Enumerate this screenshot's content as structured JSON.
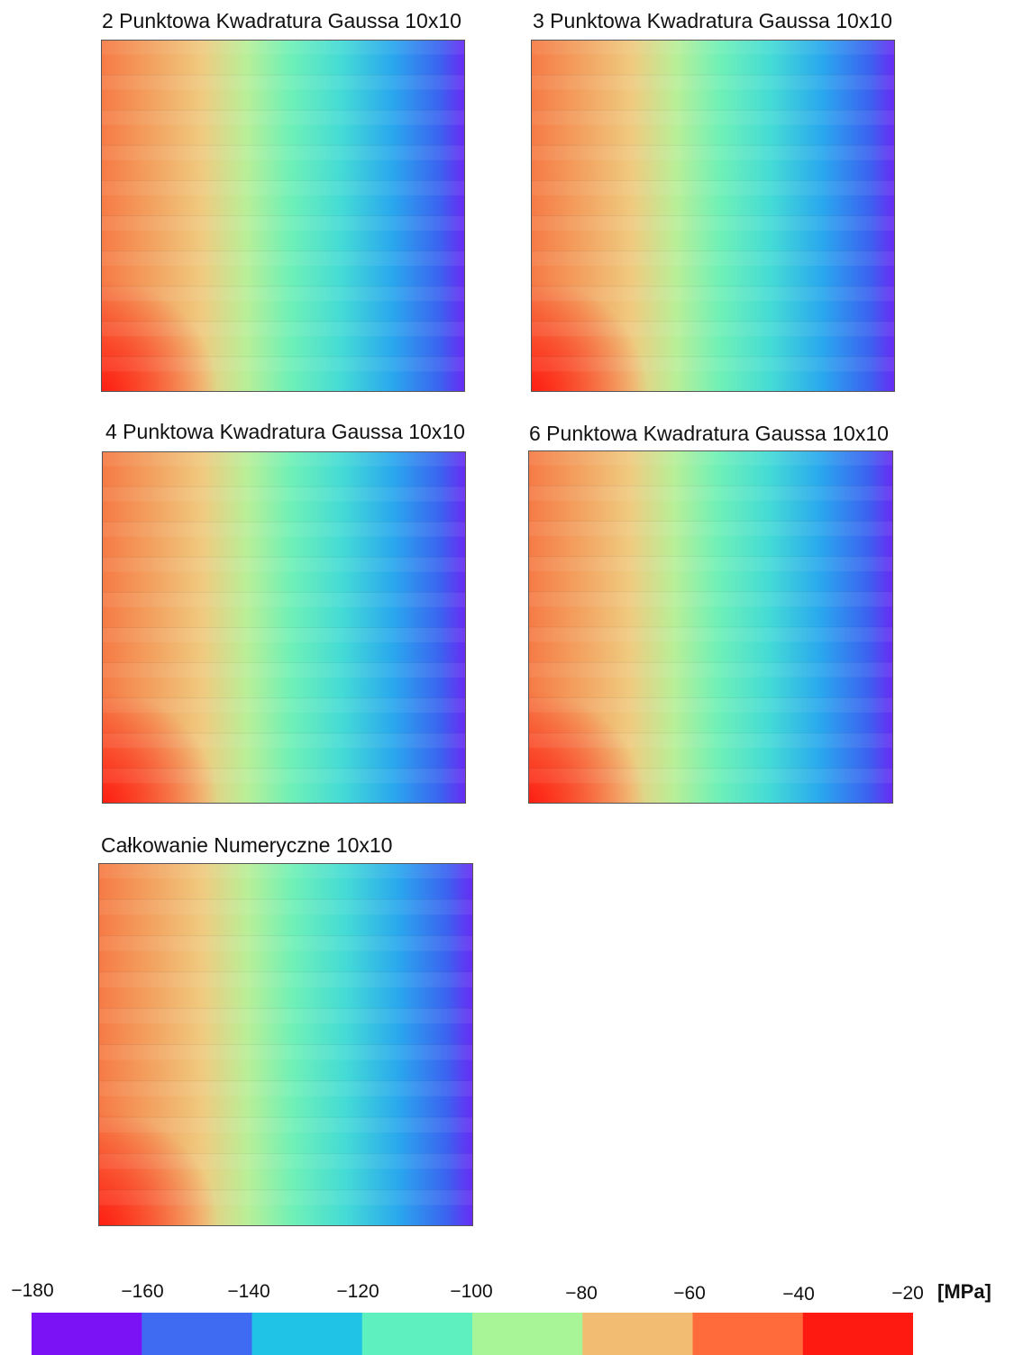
{
  "chart_data": {
    "type": "heatmap",
    "colorscale": {
      "min": -180,
      "max": -20,
      "unit": "[MPa]",
      "ticks": [
        -180,
        -160,
        -140,
        -120,
        -100,
        -80,
        -60,
        -40,
        -20
      ],
      "tick_labels": [
        "−180",
        "−160",
        "−140",
        "−120",
        "−100",
        "−80",
        "−60",
        "−40",
        "−20"
      ],
      "colors": [
        "#7a12f5",
        "#3f6bf2",
        "#20c3e6",
        "#5ef0bf",
        "#a8f597",
        "#f2bd72",
        "#ff6b3a",
        "#fe1a10"
      ]
    },
    "grid": {
      "rows": 10,
      "cols": 10
    },
    "panels": [
      {
        "title": "2 Punktowa Kwadratura Gaussa 10x10"
      },
      {
        "title": "3 Punktowa Kwadratura Gaussa 10x10"
      },
      {
        "title": "4 Punktowa Kwadratura Gaussa 10x10"
      },
      {
        "title": "6 Punktowa Kwadratura Gaussa 10x10"
      },
      {
        "title": "Całkowanie Numeryczne 10x10"
      }
    ]
  }
}
